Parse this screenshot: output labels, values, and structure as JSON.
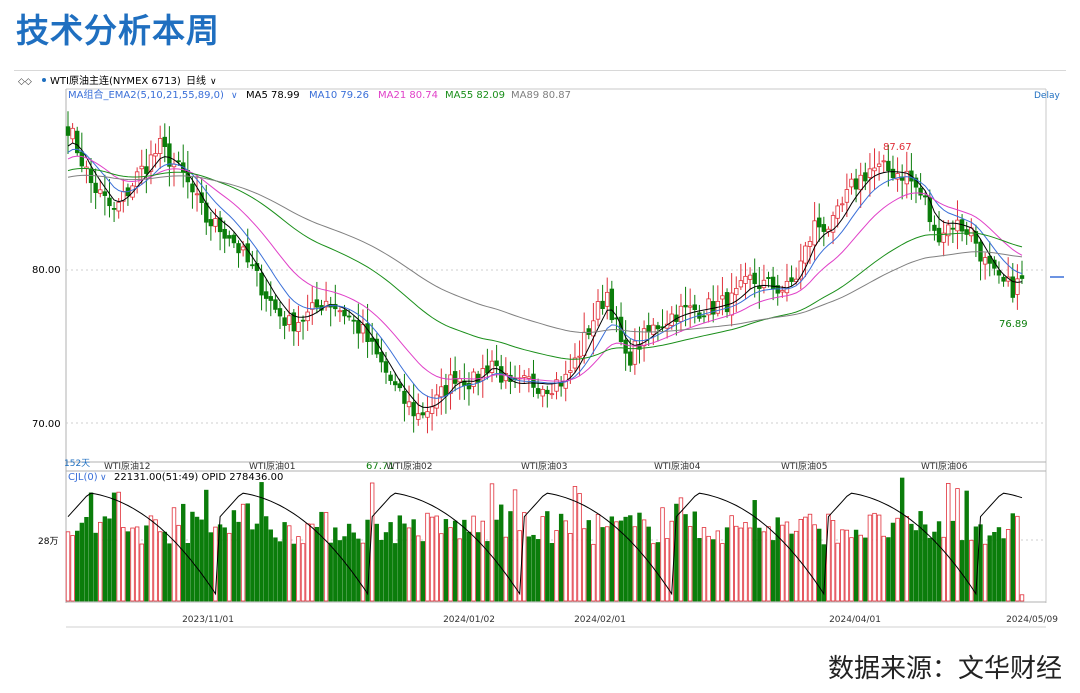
{
  "page": {
    "title": "技术分析本周",
    "source": "数据来源：文华财经"
  },
  "toolbar": {
    "instrument": "WTI原油主连(NYMEX 6713)",
    "period": "日线"
  },
  "indicator_line": {
    "ma_group": "MA组合_EMA2(5,10,21,55,89,0)",
    "ma5": "MA5 78.99",
    "ma10": "MA10 79.26",
    "ma21": "MA21 80.74",
    "ma55": "MA55 82.09",
    "ma89": "MA89 80.87",
    "delay": "Delay"
  },
  "price_labels": {
    "high": "87.67",
    "low_left": "67.71",
    "low_right": "76.89",
    "tick_80": "80.00",
    "tick_70": "70.00",
    "days": "152天"
  },
  "contract_labels": [
    "WTI原油12",
    "WTI原油01",
    "WTI原油02",
    "WTI原油03",
    "WTI原油04",
    "WTI原油05",
    "WTI原油06"
  ],
  "volume_panel": {
    "header": "CJL(0)",
    "values": "22131.00(51:49)  OPID 278436.00",
    "tick": "28万"
  },
  "date_labels": [
    "2023/11/01",
    "2024/01/02",
    "2024/02/01",
    "2024/04/01",
    "2024/05/09"
  ],
  "colors": {
    "up": "#e0303a",
    "down": "#0b7d0b",
    "ma5": "#000000",
    "ma10": "#3a6fd8",
    "ma21": "#e040c8",
    "ma55": "#1a8f1a",
    "ma89": "#808080"
  },
  "chart_data": {
    "type": "candlestick",
    "title": "WTI原油主连(NYMEX 6713)",
    "period": "日线",
    "ylim": [
      66.5,
      92
    ],
    "y_ticks": [
      70,
      80
    ],
    "x_date_ticks": [
      "2023/11/01",
      "2024/01/02",
      "2024/02/01",
      "2024/04/01",
      "2024/05/09"
    ],
    "annotations": {
      "high": 87.67,
      "low_left": 67.71,
      "low_right": 76.89
    },
    "latest_ma": {
      "MA5": 78.99,
      "MA10": 79.26,
      "MA21": 80.74,
      "MA55": 82.09,
      "MA89": 80.87
    },
    "close_path": [
      [
        0,
        89.5
      ],
      [
        5,
        85.5
      ],
      [
        10,
        83.5
      ],
      [
        15,
        86
      ],
      [
        20,
        88
      ],
      [
        25,
        86
      ],
      [
        30,
        83
      ],
      [
        35,
        82
      ],
      [
        40,
        79.5
      ],
      [
        45,
        76.8
      ],
      [
        48,
        75.8
      ],
      [
        52,
        76.4
      ],
      [
        56,
        77.5
      ],
      [
        60,
        76.6
      ],
      [
        64,
        75.2
      ],
      [
        68,
        73
      ],
      [
        72,
        70.8
      ],
      [
        76,
        69.5
      ],
      [
        80,
        70.5
      ],
      [
        84,
        72.3
      ],
      [
        88,
        71.8
      ],
      [
        92,
        73.3
      ],
      [
        96,
        71.3
      ],
      [
        100,
        71.8
      ],
      [
        104,
        71.6
      ],
      [
        108,
        72
      ],
      [
        110,
        73.2
      ],
      [
        114,
        76.2
      ],
      [
        117,
        78
      ],
      [
        121,
        73.2
      ],
      [
        124,
        74.5
      ],
      [
        128,
        75.8
      ],
      [
        132,
        76.6
      ],
      [
        136,
        76.8
      ],
      [
        140,
        77
      ],
      [
        144,
        77.4
      ],
      [
        148,
        78.8
      ],
      [
        152,
        78.4
      ],
      [
        156,
        78.2
      ],
      [
        158,
        79.1
      ],
      [
        162,
        82.6
      ],
      [
        166,
        82.6
      ],
      [
        170,
        85.2
      ],
      [
        174,
        86.5
      ],
      [
        178,
        86.4
      ],
      [
        182,
        86.1
      ],
      [
        186,
        84.2
      ],
      [
        188,
        81.9
      ],
      [
        192,
        82.8
      ],
      [
        196,
        82.2
      ],
      [
        199,
        80
      ],
      [
        202,
        78.6
      ],
      [
        205,
        78.3
      ],
      [
        207,
        78.8
      ]
    ],
    "volume_range": [
      0,
      420000
    ],
    "volume_tick": 280000
  }
}
